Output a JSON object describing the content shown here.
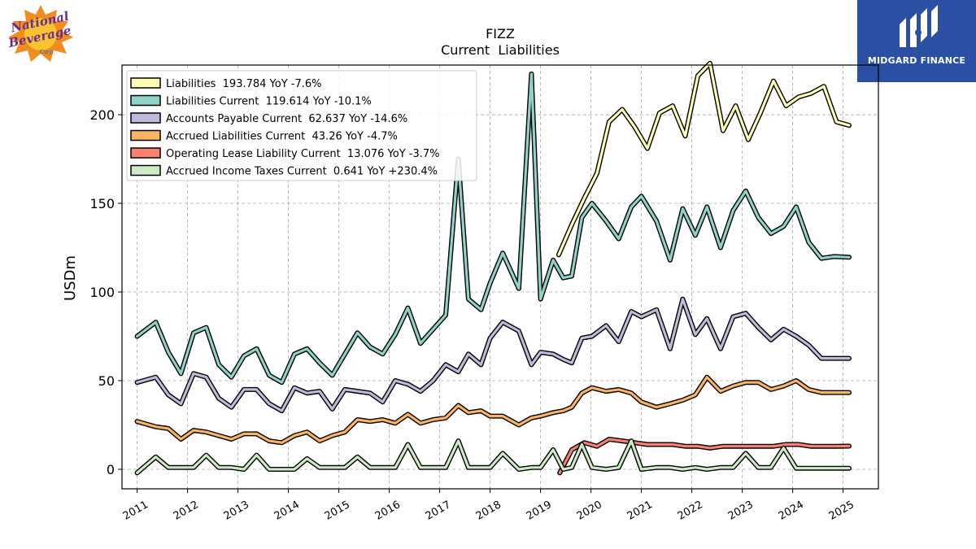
{
  "logo": {
    "name": "National Beverage Corp",
    "text_line1": "National",
    "text_line2": "Beverage",
    "text_line3": "Corp."
  },
  "brand": {
    "name": "MIDGARD FINANCE",
    "icon": "midgard-logo-icon",
    "bg_color": "#2b4fa3"
  },
  "chart_data": {
    "type": "line",
    "title": "FIZZ",
    "subtitle": "Current  Liabilities",
    "ylabel": "USDm",
    "xlabel": "",
    "ylim": [
      -11,
      228
    ],
    "xlim": [
      2010.7,
      2025.7
    ],
    "yticks": [
      0,
      50,
      100,
      150,
      200
    ],
    "xticks": [
      "2011",
      "2012",
      "2013",
      "2014",
      "2015",
      "2016",
      "2017",
      "2018",
      "2019",
      "2020",
      "2021",
      "2022",
      "2023",
      "2024",
      "2025"
    ],
    "grid": true,
    "legend_position": "top-left",
    "series": [
      {
        "name": "Liabilities",
        "legend": "Liabilities  193.784 YoY -7.6%",
        "color": "#ffffb3",
        "x": [
          2019.36,
          2019.62,
          2019.87,
          2020.12,
          2020.36,
          2020.62,
          2020.87,
          2021.12,
          2021.36,
          2021.62,
          2021.87,
          2022.12,
          2022.36,
          2022.62,
          2022.87,
          2023.12,
          2023.36,
          2023.62,
          2023.87,
          2024.12,
          2024.36,
          2024.62,
          2024.87,
          2025.12
        ],
        "y": [
          121,
          138,
          153,
          167,
          196,
          203,
          193,
          181,
          201,
          205,
          188,
          222,
          229,
          191,
          205,
          186,
          201,
          219,
          205,
          210,
          212,
          216,
          196,
          194
        ]
      },
      {
        "name": "Liabilities Current",
        "legend": "Liabilities Current  119.614 YoY -10.1%",
        "color": "#8dd3c7",
        "x": [
          2011.0,
          2011.37,
          2011.62,
          2011.87,
          2012.12,
          2012.37,
          2012.62,
          2012.87,
          2013.12,
          2013.37,
          2013.62,
          2013.87,
          2014.12,
          2014.37,
          2014.62,
          2014.87,
          2015.12,
          2015.37,
          2015.62,
          2015.87,
          2016.12,
          2016.37,
          2016.62,
          2016.87,
          2017.12,
          2017.37,
          2017.57,
          2017.82,
          2018.0,
          2018.25,
          2018.57,
          2018.82,
          2019.0,
          2019.25,
          2019.45,
          2019.62,
          2019.82,
          2020.02,
          2020.3,
          2020.55,
          2020.8,
          2021.0,
          2021.3,
          2021.57,
          2021.82,
          2022.07,
          2022.3,
          2022.57,
          2022.82,
          2023.07,
          2023.32,
          2023.57,
          2023.82,
          2024.07,
          2024.32,
          2024.57,
          2024.82,
          2025.12
        ],
        "y": [
          75,
          83,
          66,
          54,
          77,
          80,
          59,
          52,
          64,
          68,
          53,
          49,
          65,
          68,
          60,
          53,
          65,
          77,
          69,
          65,
          76,
          91,
          71,
          79,
          87,
          175,
          96,
          90,
          105,
          122,
          102,
          223,
          96,
          118,
          108,
          109,
          142,
          150,
          140,
          130,
          148,
          154,
          140,
          118,
          147,
          132,
          148,
          125,
          146,
          157,
          142,
          133,
          137,
          148,
          128,
          119,
          120,
          119.6
        ]
      },
      {
        "name": "Accounts Payable Current",
        "legend": "Accounts Payable Current  62.637 YoY -14.6%",
        "color": "#bebada",
        "x": [
          2011.0,
          2011.37,
          2011.62,
          2011.87,
          2012.12,
          2012.37,
          2012.62,
          2012.87,
          2013.12,
          2013.37,
          2013.62,
          2013.87,
          2014.12,
          2014.37,
          2014.62,
          2014.87,
          2015.12,
          2015.37,
          2015.62,
          2015.87,
          2016.12,
          2016.37,
          2016.62,
          2016.87,
          2017.12,
          2017.37,
          2017.57,
          2017.82,
          2018.0,
          2018.25,
          2018.57,
          2018.82,
          2019.0,
          2019.25,
          2019.45,
          2019.62,
          2019.82,
          2020.02,
          2020.3,
          2020.55,
          2020.8,
          2021.0,
          2021.3,
          2021.57,
          2021.82,
          2022.07,
          2022.3,
          2022.57,
          2022.82,
          2023.07,
          2023.32,
          2023.57,
          2023.82,
          2024.07,
          2024.32,
          2024.57,
          2024.82,
          2025.12
        ],
        "y": [
          49,
          52,
          42,
          37,
          54,
          52,
          40,
          35,
          45,
          45,
          37,
          33,
          46,
          43,
          44,
          34,
          45,
          44,
          43,
          38,
          50,
          48,
          44,
          50,
          59,
          55,
          65,
          59,
          74,
          83,
          78,
          59,
          66,
          65,
          62,
          60,
          74,
          75,
          81,
          72,
          89,
          86,
          90,
          68,
          96,
          76,
          85,
          68,
          86,
          88,
          80,
          73,
          79,
          75,
          70,
          62.6,
          62.6,
          62.6
        ]
      },
      {
        "name": "Accrued Liabilities Current",
        "legend": "Accrued Liabilities Current  43.26 YoY -4.7%",
        "color": "#fdb462",
        "x": [
          2011.0,
          2011.37,
          2011.62,
          2011.87,
          2012.12,
          2012.37,
          2012.62,
          2012.87,
          2013.12,
          2013.37,
          2013.62,
          2013.87,
          2014.12,
          2014.37,
          2014.62,
          2014.87,
          2015.12,
          2015.37,
          2015.62,
          2015.87,
          2016.12,
          2016.37,
          2016.62,
          2016.87,
          2017.12,
          2017.37,
          2017.57,
          2017.82,
          2018.0,
          2018.25,
          2018.57,
          2018.82,
          2019.0,
          2019.25,
          2019.45,
          2019.62,
          2019.82,
          2020.02,
          2020.3,
          2020.55,
          2020.8,
          2021.0,
          2021.3,
          2021.57,
          2021.82,
          2022.07,
          2022.3,
          2022.57,
          2022.82,
          2023.07,
          2023.32,
          2023.57,
          2023.82,
          2024.07,
          2024.32,
          2024.57,
          2024.82,
          2025.12
        ],
        "y": [
          27,
          24,
          23,
          17,
          22,
          21,
          19,
          17,
          20,
          20,
          16,
          15,
          19,
          21,
          16,
          19,
          21,
          28,
          27,
          28,
          26,
          31,
          26,
          28,
          29,
          36,
          32,
          33,
          30,
          30,
          25,
          29,
          30,
          32,
          33,
          35,
          43,
          46,
          44,
          45,
          43,
          38,
          35,
          37,
          39,
          42,
          52,
          44,
          47,
          49,
          49,
          45,
          47,
          50,
          45,
          43.3,
          43.3,
          43.3
        ]
      },
      {
        "name": "Operating Lease Liability Current",
        "legend": "Operating Lease Liability Current  13.076 YoY -3.7%",
        "color": "#fb8072",
        "x": [
          2019.38,
          2019.62,
          2019.87,
          2020.12,
          2020.36,
          2020.62,
          2020.87,
          2021.12,
          2021.36,
          2021.62,
          2021.87,
          2022.12,
          2022.36,
          2022.62,
          2022.87,
          2023.12,
          2023.36,
          2023.62,
          2023.87,
          2024.12,
          2024.36,
          2024.62,
          2024.87,
          2025.12
        ],
        "y": [
          -2,
          11,
          15,
          13,
          17,
          16,
          15,
          14,
          14,
          14,
          13,
          13,
          12,
          13,
          13,
          13,
          13,
          13,
          14,
          14,
          13,
          13,
          13,
          13.1
        ]
      },
      {
        "name": "Accrued Income Taxes Current",
        "legend": "Accrued Income Taxes Current  0.641 YoY +230.4%",
        "color": "#ccebc5",
        "x": [
          2011.0,
          2011.37,
          2011.62,
          2011.87,
          2012.12,
          2012.37,
          2012.62,
          2012.87,
          2013.12,
          2013.37,
          2013.62,
          2013.87,
          2014.12,
          2014.37,
          2014.62,
          2014.87,
          2015.12,
          2015.37,
          2015.62,
          2015.87,
          2016.12,
          2016.37,
          2016.62,
          2016.87,
          2017.12,
          2017.37,
          2017.57,
          2017.82,
          2018.0,
          2018.25,
          2018.57,
          2018.82,
          2019.0,
          2019.25,
          2019.45,
          2019.62,
          2019.82,
          2020.02,
          2020.3,
          2020.55,
          2020.8,
          2021.0,
          2021.3,
          2021.57,
          2021.82,
          2022.07,
          2022.3,
          2022.57,
          2022.82,
          2023.07,
          2023.32,
          2023.57,
          2023.82,
          2024.07,
          2024.32,
          2024.57,
          2024.82,
          2025.12
        ],
        "y": [
          -2,
          7,
          1,
          1,
          1,
          8,
          1,
          1,
          0,
          8,
          0,
          0,
          0,
          6,
          1,
          1,
          1,
          7,
          1,
          1,
          1,
          14,
          1,
          1,
          1,
          16,
          1,
          1,
          1,
          9,
          0,
          1,
          1,
          11,
          0,
          1,
          14,
          1,
          0,
          1,
          16,
          0,
          1,
          1,
          0,
          1,
          0,
          1,
          1,
          9,
          1,
          1,
          12,
          0.6,
          0.6,
          0.6,
          0.6,
          0.6
        ]
      }
    ]
  }
}
